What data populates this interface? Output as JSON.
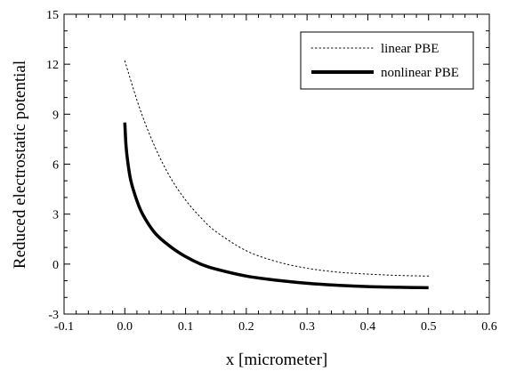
{
  "chart_data": {
    "type": "line",
    "title": "",
    "xlabel": "x [micrometer]",
    "ylabel": "Reduced electrostatic potential",
    "xlim": [
      -0.1,
      0.6
    ],
    "ylim": [
      -3,
      15
    ],
    "xticks": [
      -0.1,
      0.0,
      0.1,
      0.2,
      0.3,
      0.4,
      0.5,
      0.6
    ],
    "yticks": [
      -3,
      0,
      3,
      6,
      9,
      12,
      15
    ],
    "xtick_labels": [
      "-0.1",
      "0.0",
      "0.1",
      "0.2",
      "0.3",
      "0.4",
      "0.5",
      "0.6"
    ],
    "ytick_labels": [
      "-3",
      "0",
      "3",
      "6",
      "9",
      "12",
      "15"
    ],
    "grid": false,
    "legend_position": "top-right",
    "series": [
      {
        "name": "linear PBE",
        "style": "dotted",
        "color": "#000000",
        "x": [
          0.0,
          0.025,
          0.05,
          0.075,
          0.1,
          0.125,
          0.15,
          0.2,
          0.25,
          0.3,
          0.35,
          0.4,
          0.45,
          0.5
        ],
        "y": [
          12.2,
          9.3,
          7.0,
          5.2,
          3.85,
          2.8,
          1.95,
          0.8,
          0.15,
          -0.25,
          -0.48,
          -0.6,
          -0.68,
          -0.72
        ]
      },
      {
        "name": "nonlinear PBE",
        "style": "solid-thick",
        "color": "#000000",
        "x": [
          0.0,
          0.002,
          0.005,
          0.01,
          0.02,
          0.03,
          0.05,
          0.075,
          0.1,
          0.125,
          0.15,
          0.2,
          0.25,
          0.3,
          0.35,
          0.4,
          0.45,
          0.5
        ],
        "y": [
          8.5,
          7.1,
          6.1,
          5.0,
          3.8,
          2.95,
          1.85,
          1.05,
          0.45,
          0.0,
          -0.3,
          -0.72,
          -0.97,
          -1.15,
          -1.27,
          -1.35,
          -1.39,
          -1.42
        ]
      }
    ]
  }
}
